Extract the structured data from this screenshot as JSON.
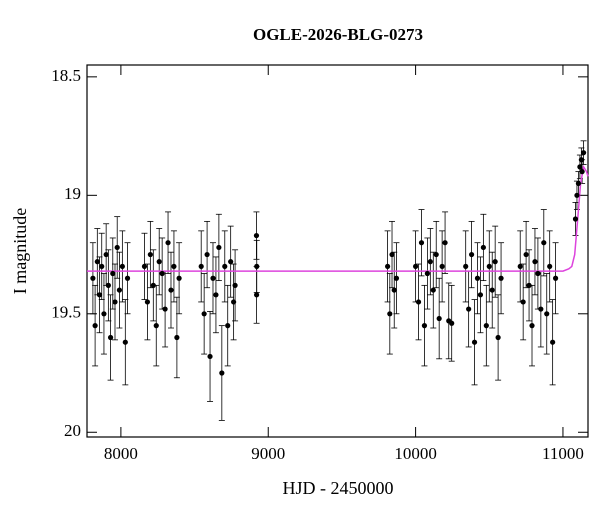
{
  "chart_data": {
    "type": "scatter",
    "title": "OGLE-2026-BLG-0273",
    "x_label": "HJD - 2450000",
    "y_label": "I magnitude",
    "xlim": [
      7770,
      11170
    ],
    "ylim": [
      20.02,
      18.45
    ],
    "xticks": [
      8000,
      9000,
      10000,
      11000
    ],
    "yticks": [
      18.5,
      19,
      19.5,
      20
    ],
    "series": [
      {
        "color": "#000000",
        "x": [
          7810,
          7825,
          7840,
          7855,
          7870,
          7885,
          7900,
          7915,
          7930,
          7945,
          7960,
          7975,
          7990,
          8010,
          8030,
          8045,
          8160,
          8180,
          8200,
          8220,
          8240,
          8260,
          8280,
          8300,
          8320,
          8340,
          8360,
          8380,
          8395,
          8545,
          8565,
          8585,
          8605,
          8625,
          8645,
          8665,
          8685,
          8705,
          8725,
          8745,
          8765,
          8775,
          8920,
          8921,
          8922,
          9810,
          9825,
          9840,
          9855,
          9870,
          10000,
          10020,
          10040,
          10060,
          10080,
          10100,
          10120,
          10140,
          10160,
          10180,
          10200,
          10225,
          10245,
          10340,
          10360,
          10380,
          10400,
          10420,
          10440,
          10460,
          10480,
          10500,
          10520,
          10540,
          10560,
          10580,
          10710,
          10730,
          10750,
          10770,
          10790,
          10810,
          10830,
          10850,
          10870,
          10890,
          10910,
          10930,
          10950,
          11085,
          11095,
          11105,
          11115,
          11125,
          11130,
          11140
        ],
        "values": [
          19.35,
          19.55,
          19.28,
          19.42,
          19.3,
          19.5,
          19.25,
          19.38,
          19.6,
          19.33,
          19.45,
          19.22,
          19.4,
          19.3,
          19.62,
          19.35,
          19.3,
          19.45,
          19.25,
          19.38,
          19.55,
          19.28,
          19.33,
          19.48,
          19.2,
          19.4,
          19.3,
          19.6,
          19.35,
          19.3,
          19.5,
          19.25,
          19.68,
          19.35,
          19.42,
          19.22,
          19.75,
          19.3,
          19.55,
          19.28,
          19.45,
          19.38,
          19.17,
          19.42,
          19.3,
          19.3,
          19.5,
          19.25,
          19.4,
          19.35,
          19.3,
          19.45,
          19.2,
          19.55,
          19.33,
          19.28,
          19.4,
          19.25,
          19.52,
          19.3,
          19.2,
          19.53,
          19.54,
          19.3,
          19.48,
          19.25,
          19.62,
          19.35,
          19.42,
          19.22,
          19.55,
          19.3,
          19.4,
          19.28,
          19.6,
          19.35,
          19.3,
          19.45,
          19.25,
          19.38,
          19.55,
          19.28,
          19.33,
          19.48,
          19.2,
          19.5,
          19.3,
          19.62,
          19.35,
          19.1,
          19.0,
          18.95,
          18.88,
          18.85,
          18.9,
          18.82
        ],
        "errors": [
          0.15,
          0.17,
          0.14,
          0.16,
          0.14,
          0.17,
          0.13,
          0.15,
          0.18,
          0.15,
          0.16,
          0.13,
          0.16,
          0.15,
          0.18,
          0.15,
          0.14,
          0.16,
          0.14,
          0.15,
          0.17,
          0.14,
          0.15,
          0.16,
          0.13,
          0.16,
          0.15,
          0.17,
          0.15,
          0.15,
          0.17,
          0.14,
          0.19,
          0.15,
          0.16,
          0.14,
          0.2,
          0.15,
          0.17,
          0.15,
          0.16,
          0.15,
          0.1,
          0.12,
          0.11,
          0.15,
          0.17,
          0.14,
          0.16,
          0.15,
          0.15,
          0.16,
          0.14,
          0.17,
          0.15,
          0.14,
          0.16,
          0.14,
          0.17,
          0.15,
          0.13,
          0.16,
          0.16,
          0.15,
          0.16,
          0.14,
          0.18,
          0.15,
          0.16,
          0.14,
          0.17,
          0.15,
          0.16,
          0.15,
          0.18,
          0.15,
          0.15,
          0.16,
          0.14,
          0.15,
          0.17,
          0.14,
          0.15,
          0.16,
          0.14,
          0.17,
          0.15,
          0.18,
          0.15,
          0.07,
          0.06,
          0.05,
          0.05,
          0.05,
          0.05,
          0.05
        ]
      },
      {
        "color": "#dd44dd",
        "x": [
          7770,
          11000,
          11040,
          11060,
          11080,
          11100,
          11120,
          11140,
          11160,
          11170
        ],
        "values": [
          19.32,
          19.32,
          19.31,
          19.3,
          19.25,
          19.1,
          18.95,
          18.88,
          18.9,
          18.92
        ]
      }
    ]
  }
}
